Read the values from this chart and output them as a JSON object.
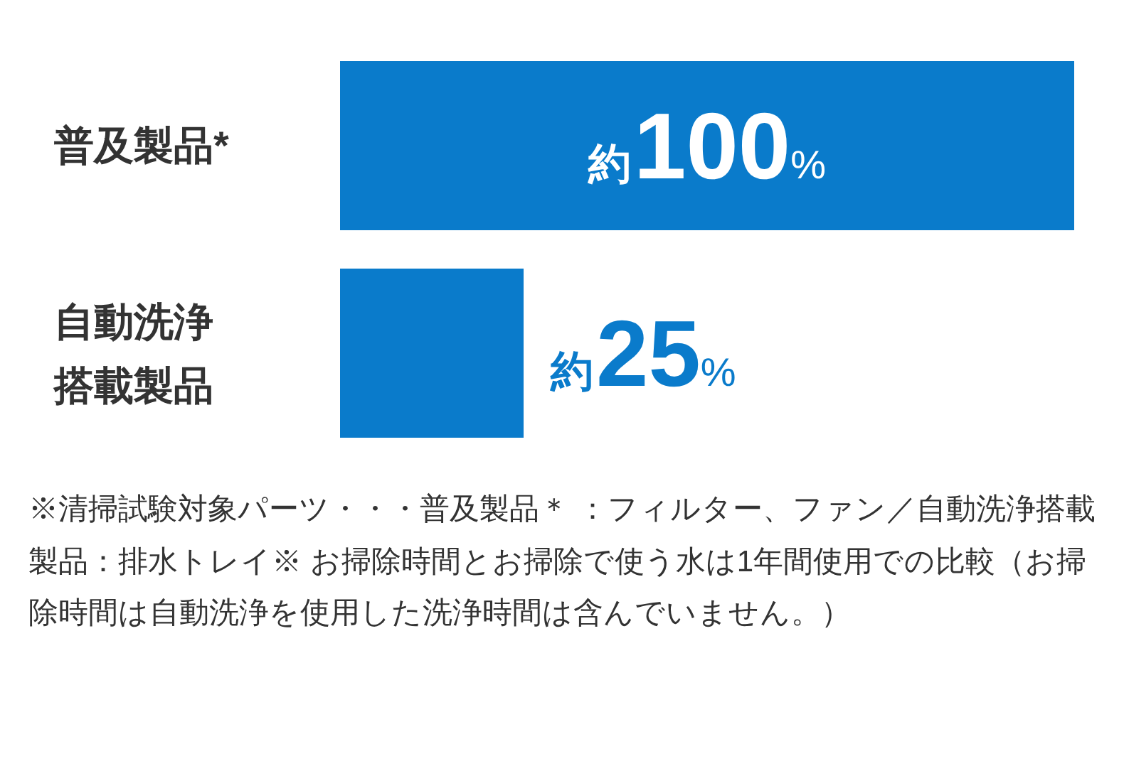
{
  "chart_data": {
    "type": "bar",
    "orientation": "horizontal",
    "categories": [
      "普及製品*",
      "自動洗浄搭載製品"
    ],
    "values": [
      100,
      25
    ],
    "value_labels": [
      "約100%",
      "約25%"
    ],
    "color": "#0a7bcb",
    "annotations": [
      "※清掃試験対象パーツ・・・普及製品＊ ：フィルター、ファン／自動洗浄搭載製品：排水トレイ※ お掃除時間とお掃除で使う水は1年間使用での比較（お掃除時間は自動洗浄を使用した洗浄時間は含んでいません。）"
    ]
  }
}
